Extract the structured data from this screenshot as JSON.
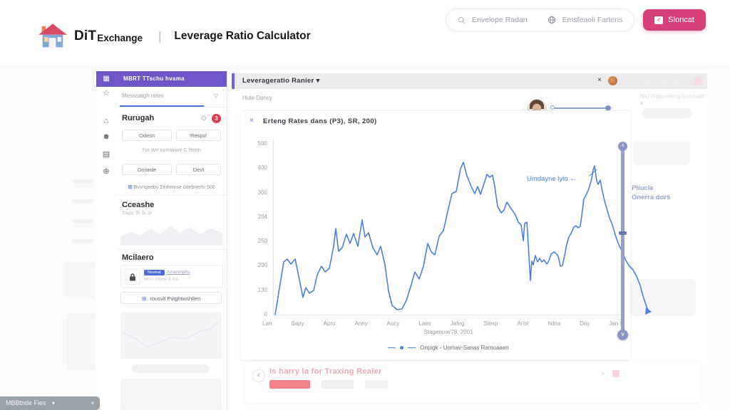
{
  "colors": {
    "purple": "#6f55c8",
    "accent_blue": "#4a6fd8",
    "line_blue": "#4a80d8",
    "pink_button": "#d6407a",
    "red_badge": "#e23b4e",
    "progress_red": "#f2838d",
    "slider_blue_grey": "#98a1ca"
  },
  "header": {
    "brand_bold": "DiT",
    "brand_rest": "Exchange",
    "divider": "|",
    "page_title": "Leverage Ratio Calculator",
    "search_label": "Envelope Radan",
    "feedback_label": "Emsfeaoli Fartens",
    "cta_label": "Sloncat"
  },
  "rail": {
    "items": [
      {
        "name": "grid",
        "glyph": "▦"
      },
      {
        "name": "star",
        "glyph": "☆"
      },
      {
        "name": "bank",
        "glyph": "⌂"
      },
      {
        "name": "person",
        "glyph": "☻"
      },
      {
        "name": "briefcase",
        "glyph": "▤"
      },
      {
        "name": "globe",
        "glyph": "⊕"
      }
    ]
  },
  "sidebar": {
    "header_title": "MBRT TTschu hvama",
    "tab_label": "Messoaigh retes",
    "filter_icon": "▽",
    "requests": {
      "title": "Rurugah",
      "eye_icon": "⊙",
      "badge": "3",
      "btn1": "Odesn",
      "btn2": "Respvl",
      "caption": "For We Incealiave C fiteon",
      "btn3": "Donede",
      "btn4": "Devt",
      "link_icon": "⊞",
      "link": "Bvvngeeby Zinhemse odebnertv 506"
    },
    "console": {
      "title": "Cceashe",
      "subtitle": "Slapq 3h 3c dr"
    },
    "mailers": {
      "title": "Mcilaero",
      "item_badge": "Nesmal",
      "item_label": "Amenniphs",
      "item_sub": "whcs zillane & knc",
      "button_icon": "⊞",
      "button_label": "rousvit Pvtghtwshtlen"
    }
  },
  "main": {
    "titlebar_title": "Leverageratio Ranier",
    "caret": "▾",
    "close_icon": "×",
    "subheader_left": "Hute Dancy",
    "subheader_right_faint": "Nst Happening Uncludd ▾",
    "bottom_title": "Is harry la for Traxing Realer",
    "chevron": "‹",
    "bottom_close": "×"
  },
  "chart_data": {
    "type": "line",
    "title": "Erteng Rates dans  (P3), SR, 200)",
    "legend": "Onpigk - Uomav-Sanas Ramuaaen",
    "annotation": "Umdayne lylo",
    "slider_label_1": "Pliucle",
    "slider_label_2": "Onerra dors",
    "line_color": "#4a80d8",
    "ylim": [
      0,
      500
    ],
    "grid": false,
    "y_ticks": [
      "500",
      "400",
      "300",
      "204",
      "250",
      "200",
      "130",
      "0"
    ],
    "x_ticks": [
      "Lan",
      "Sapy",
      "Apro",
      "Anny",
      "Aucy",
      "Laes",
      "Jafeg",
      "Siexp",
      "Arist",
      "hdna",
      "Doy",
      "Jan 9"
    ],
    "x_sublabel": "Stagenow/78, 2001",
    "points": [
      [
        3,
        246
      ],
      [
        8,
        215
      ],
      [
        15,
        172
      ],
      [
        20,
        168
      ],
      [
        25,
        175
      ],
      [
        31,
        168
      ],
      [
        36,
        192
      ],
      [
        42,
        222
      ],
      [
        46,
        208
      ],
      [
        51,
        216
      ],
      [
        57,
        212
      ],
      [
        62,
        190
      ],
      [
        68,
        178
      ],
      [
        73,
        186
      ],
      [
        79,
        181
      ],
      [
        85,
        150
      ],
      [
        88,
        125
      ],
      [
        92,
        157
      ],
      [
        97,
        152
      ],
      [
        103,
        133
      ],
      [
        108,
        146
      ],
      [
        113,
        132
      ],
      [
        119,
        150
      ],
      [
        125,
        113
      ],
      [
        129,
        137
      ],
      [
        134,
        131
      ],
      [
        140,
        152
      ],
      [
        146,
        162
      ],
      [
        151,
        150
      ],
      [
        157,
        176
      ],
      [
        162,
        213
      ],
      [
        167,
        233
      ],
      [
        174,
        239
      ],
      [
        181,
        238
      ],
      [
        187,
        226
      ],
      [
        193,
        207
      ],
      [
        199,
        186
      ],
      [
        205,
        196
      ],
      [
        211,
        178
      ],
      [
        217,
        146
      ],
      [
        222,
        158
      ],
      [
        227,
        162
      ],
      [
        233,
        136
      ],
      [
        239,
        128
      ],
      [
        245,
        101
      ],
      [
        251,
        76
      ],
      [
        257,
        73
      ],
      [
        263,
        41
      ],
      [
        267,
        32
      ],
      [
        272,
        51
      ],
      [
        278,
        66
      ],
      [
        283,
        76
      ],
      [
        287,
        66
      ],
      [
        291,
        77
      ],
      [
        296,
        62
      ],
      [
        300,
        49
      ],
      [
        304,
        53
      ],
      [
        308,
        50
      ],
      [
        311,
        66
      ],
      [
        315,
        94
      ],
      [
        320,
        103
      ],
      [
        324,
        99
      ],
      [
        328,
        88
      ],
      [
        332,
        94
      ],
      [
        336,
        100
      ],
      [
        340,
        106
      ],
      [
        344,
        116
      ],
      [
        348,
        120
      ],
      [
        351,
        142
      ],
      [
        353,
        118
      ],
      [
        356,
        116
      ],
      [
        359,
        163
      ],
      [
        361,
        198
      ],
      [
        363,
        171
      ],
      [
        365,
        176
      ],
      [
        368,
        163
      ],
      [
        371,
        172
      ],
      [
        374,
        167
      ],
      [
        377,
        172
      ],
      [
        380,
        169
      ],
      [
        384,
        175
      ],
      [
        387,
        170
      ],
      [
        390,
        161
      ],
      [
        394,
        158
      ],
      [
        397,
        160
      ],
      [
        400,
        164
      ],
      [
        403,
        178
      ],
      [
        406,
        177
      ],
      [
        409,
        163
      ],
      [
        412,
        147
      ],
      [
        415,
        137
      ],
      [
        419,
        130
      ],
      [
        422,
        123
      ],
      [
        425,
        121
      ],
      [
        428,
        124
      ],
      [
        431,
        122
      ],
      [
        434,
        99
      ],
      [
        436,
        84
      ],
      [
        438,
        80
      ],
      [
        441,
        74
      ],
      [
        444,
        66
      ],
      [
        447,
        55
      ],
      [
        449,
        43
      ],
      [
        451,
        37
      ],
      [
        454,
        58
      ],
      [
        456,
        63
      ],
      [
        459,
        57
      ],
      [
        462,
        73
      ],
      [
        465,
        86
      ],
      [
        469,
        100
      ],
      [
        472,
        110
      ],
      [
        476,
        120
      ],
      [
        479,
        130
      ],
      [
        482,
        140
      ],
      [
        486,
        150
      ],
      [
        490,
        158
      ],
      [
        495,
        170
      ],
      [
        500,
        178
      ],
      [
        505,
        183
      ],
      [
        510,
        192
      ],
      [
        515,
        205
      ],
      [
        519,
        220
      ],
      [
        523,
        232
      ],
      [
        527,
        242
      ]
    ]
  },
  "download_chip": {
    "label": "MBBtnde Fies",
    "caret": "▾"
  }
}
